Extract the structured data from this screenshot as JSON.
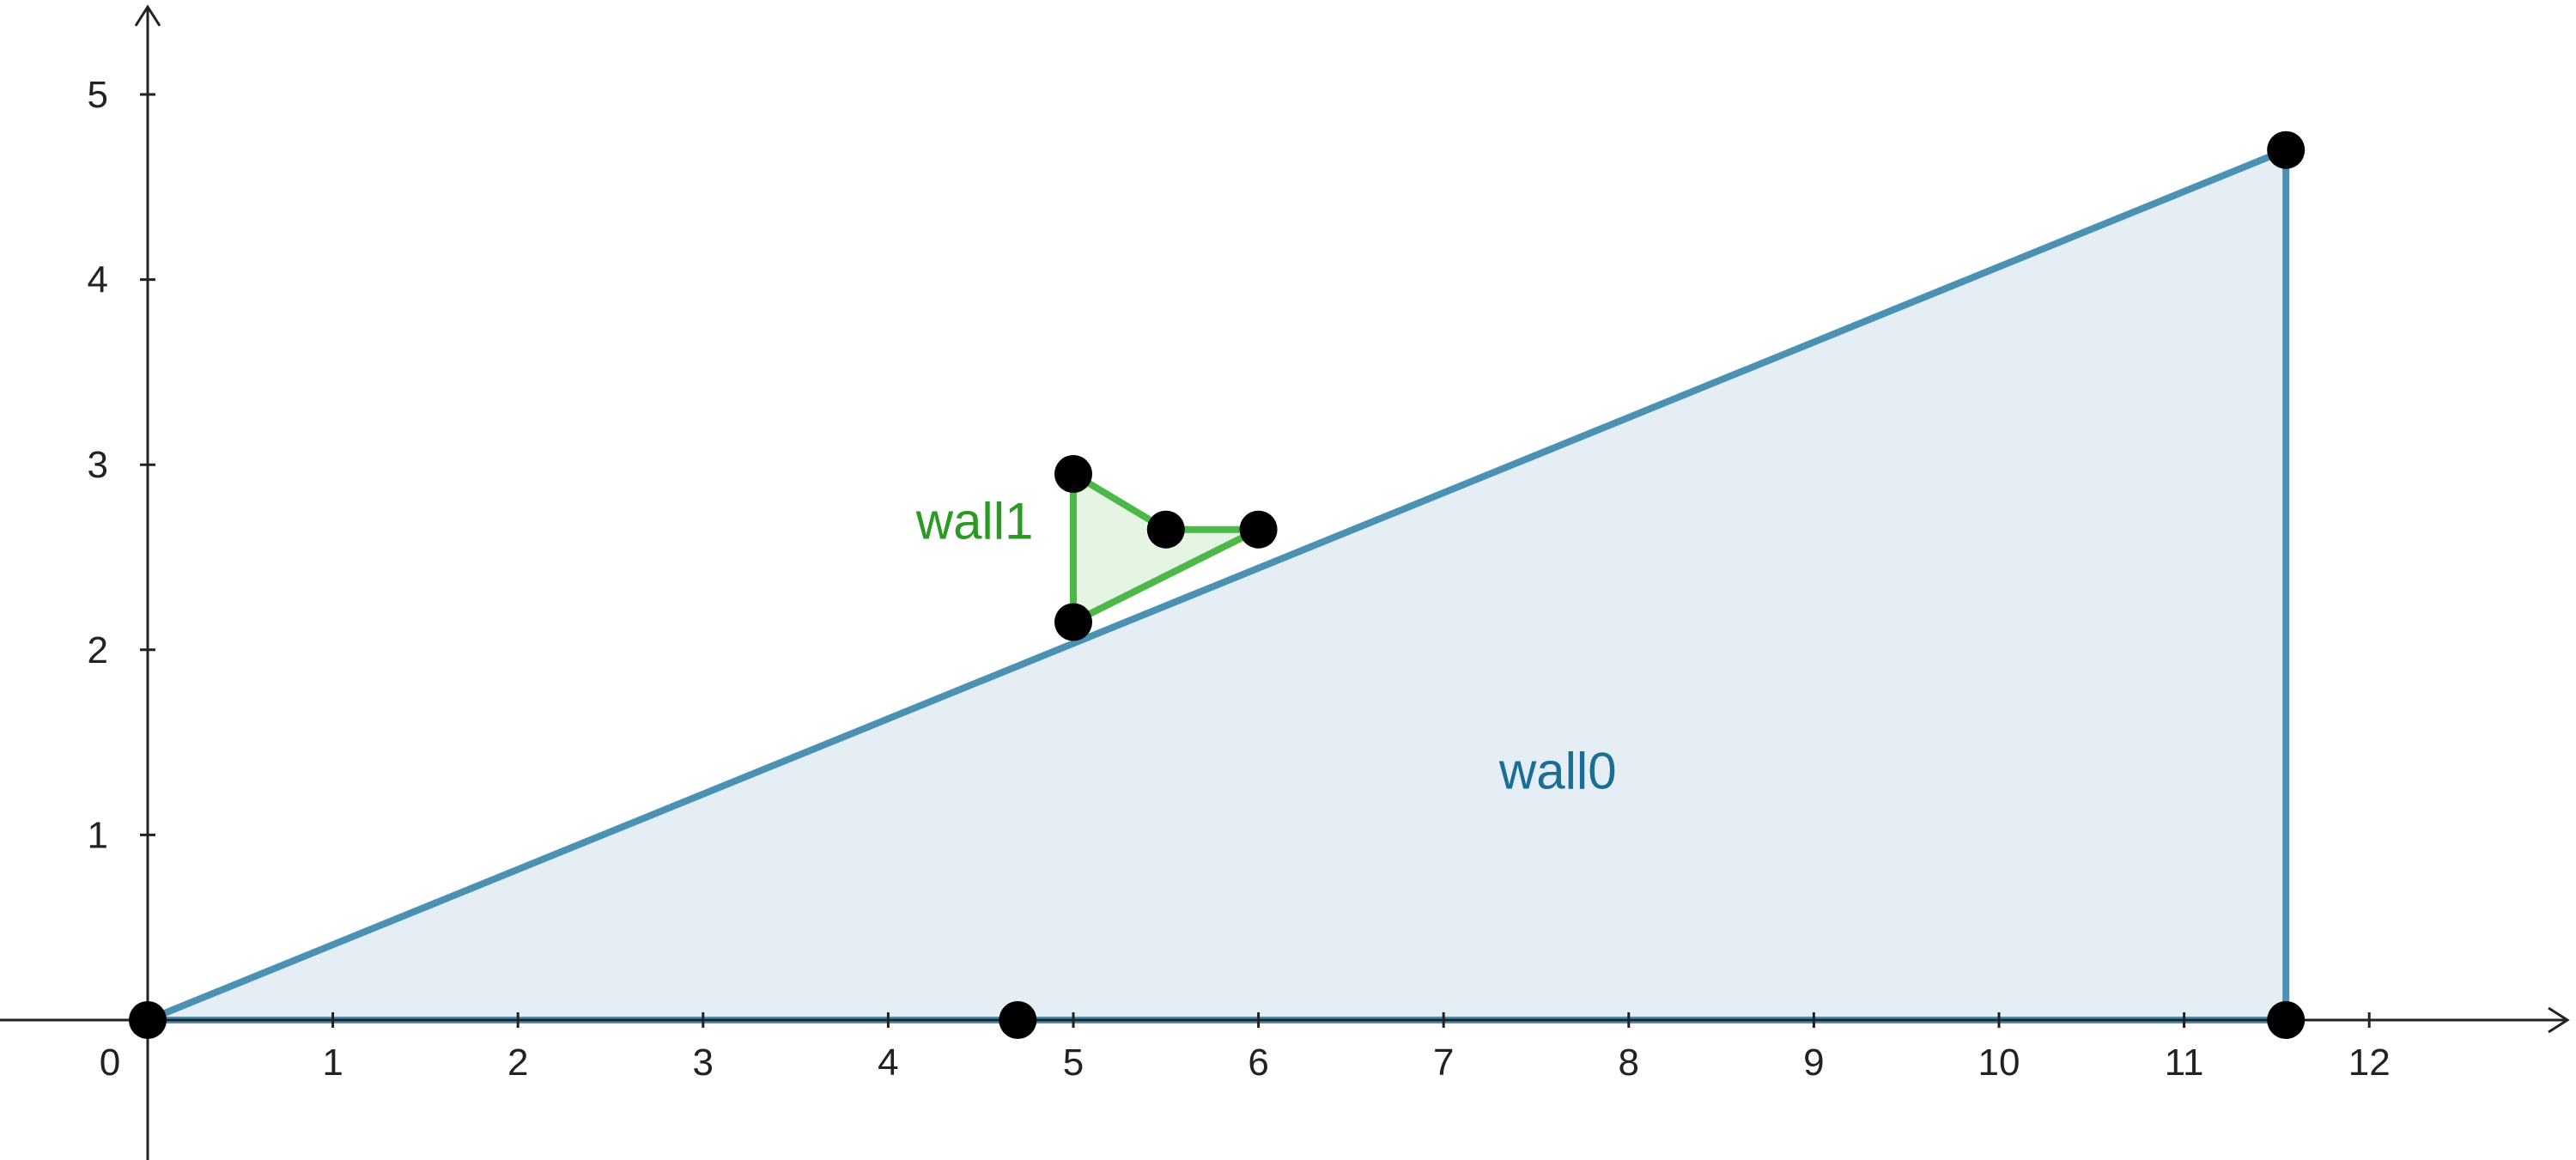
{
  "chart_data": {
    "type": "scatter",
    "grid": false,
    "xlim": [
      -1,
      13
    ],
    "ylim": [
      -0.75,
      5.5
    ],
    "x_ticks": [
      "0",
      "1",
      "2",
      "3",
      "4",
      "5",
      "6",
      "7",
      "8",
      "9",
      "10",
      "11",
      "12"
    ],
    "y_ticks": [
      "1",
      "2",
      "3",
      "4",
      "5"
    ],
    "polygons": [
      {
        "label": "wall0",
        "stroke_color": "#4a91b4",
        "fill_color": "#e5eef5",
        "label_color": "#1a6e96",
        "label_at": [
          7.3,
          1.25
        ],
        "vertices": [
          [
            0,
            0
          ],
          [
            4.7,
            0
          ],
          [
            11.55,
            0
          ],
          [
            11.55,
            4.7
          ]
        ]
      },
      {
        "label": "wall1",
        "stroke_color": "#4db84a",
        "fill_color": "#e6f4e3",
        "label_color": "#2a9a22",
        "label_at": [
          4.15,
          2.6
        ],
        "vertices": [
          [
            5,
            2.15
          ],
          [
            5,
            2.95
          ],
          [
            5.5,
            2.65
          ],
          [
            6,
            2.65
          ]
        ]
      }
    ],
    "point_color": "#000000"
  }
}
